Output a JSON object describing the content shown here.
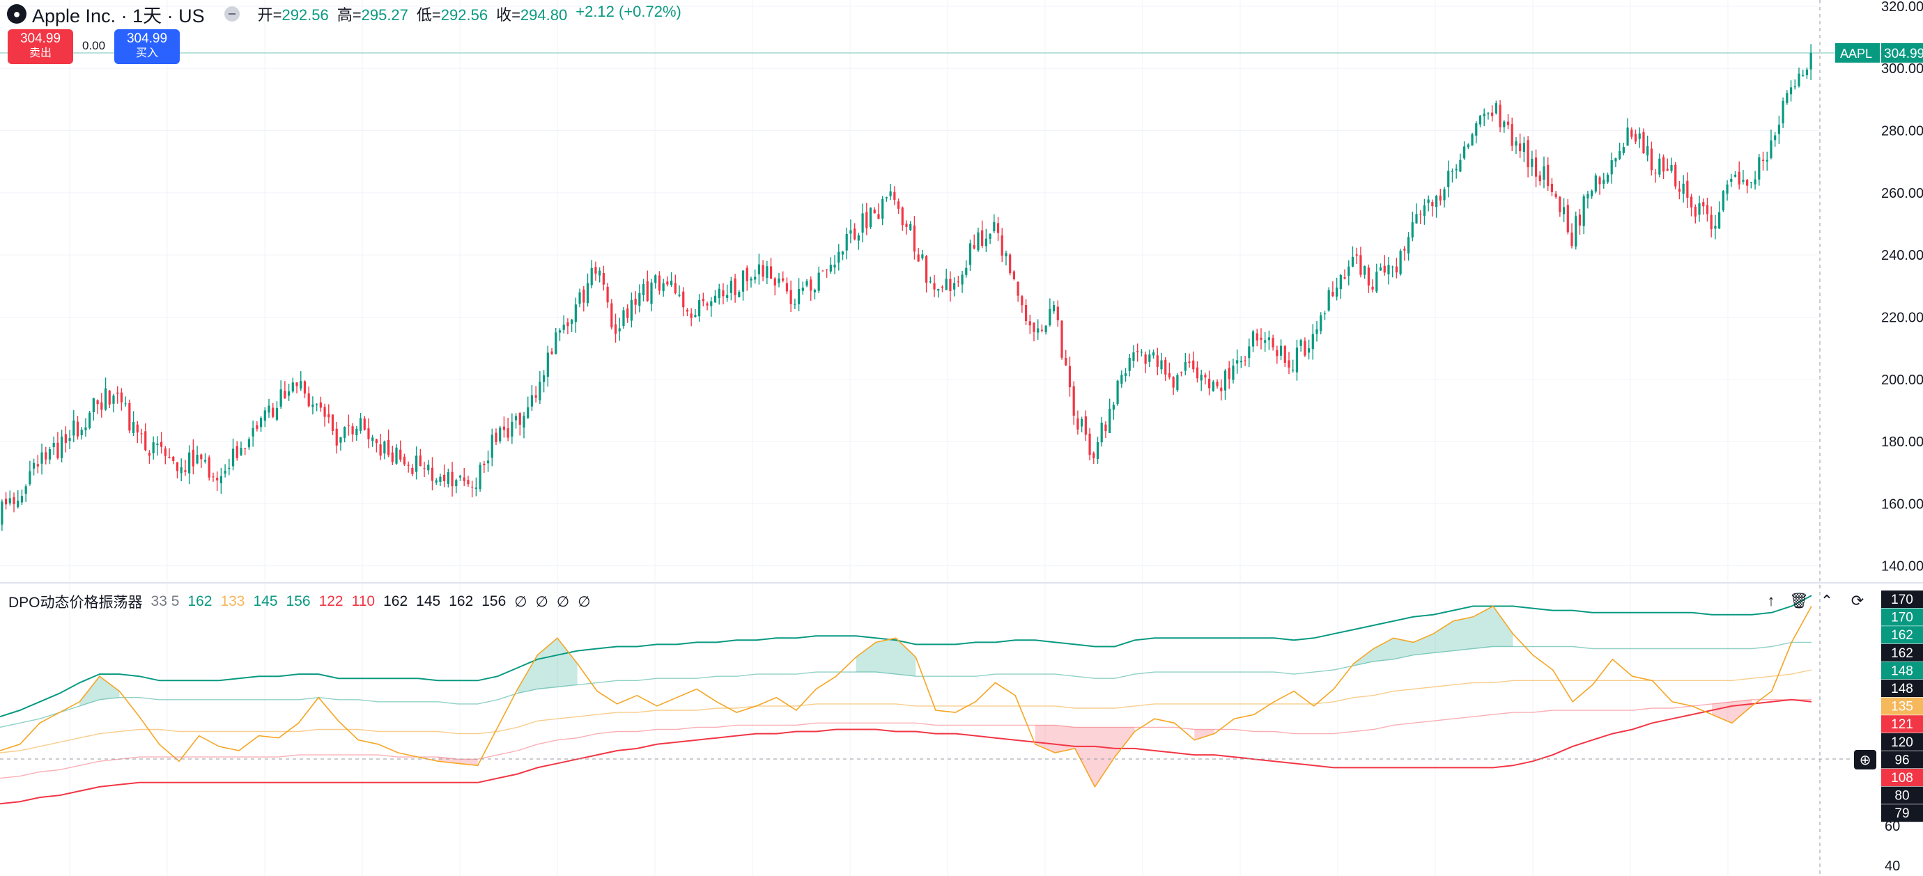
{
  "header": {
    "symbol": "Apple Inc. · 1天 · US",
    "ohlc": [
      {
        "k": "开=",
        "v": "292.56"
      },
      {
        "k": "高=",
        "v": "295.27"
      },
      {
        "k": "低=",
        "v": "292.56"
      },
      {
        "k": "收=",
        "v": "294.80"
      },
      {
        "k": "",
        "v": "+2.12 (+0.72%)"
      }
    ]
  },
  "trade": {
    "sell_price": "304.99",
    "sell_label": "卖出",
    "spread": "0.00",
    "buy_price": "304.99",
    "buy_label": "买入"
  },
  "indicator": {
    "name": "DPO动态价格振荡器",
    "params": "33 5",
    "values": [
      {
        "v": "162",
        "color": "#089981"
      },
      {
        "v": "133",
        "color": "#f5b85c"
      },
      {
        "v": "145",
        "color": "#089981"
      },
      {
        "v": "156",
        "color": "#089981"
      },
      {
        "v": "122",
        "color": "#f23645"
      },
      {
        "v": "110",
        "color": "#f23645"
      },
      {
        "v": "162",
        "color": "#131722"
      },
      {
        "v": "145",
        "color": "#131722"
      },
      {
        "v": "162",
        "color": "#131722"
      },
      {
        "v": "156",
        "color": "#131722"
      },
      {
        "v": "∅",
        "color": "#131722"
      },
      {
        "v": "∅",
        "color": "#131722"
      },
      {
        "v": "∅",
        "color": "#131722"
      },
      {
        "v": "∅",
        "color": "#131722"
      }
    ]
  },
  "colors": {
    "up": "#089981",
    "down": "#f23645",
    "dpo_line": "#f5a623",
    "upper": "#089981",
    "lower": "#f23645"
  },
  "chart_data": [
    {
      "type": "candlestick",
      "symbol_tag": "AAPL",
      "last_price": 304.99,
      "price_label": "304.99",
      "ylim": [
        135,
        322
      ],
      "yticks": [
        "320.00",
        "300.00",
        "280.00",
        "260.00",
        "240.00",
        "220.00",
        "200.00",
        "180.00",
        "160.00",
        "140.00"
      ],
      "close_series": [
        156,
        164,
        172,
        178,
        185,
        192,
        196,
        180,
        176,
        172,
        174,
        168,
        178,
        186,
        192,
        199,
        190,
        182,
        186,
        178,
        176,
        172,
        170,
        166,
        168,
        182,
        186,
        196,
        212,
        222,
        236,
        214,
        226,
        230,
        228,
        222,
        226,
        230,
        236,
        232,
        226,
        232,
        240,
        248,
        254,
        259,
        244,
        226,
        232,
        244,
        249,
        232,
        212,
        224,
        190,
        176,
        194,
        212,
        206,
        200,
        204,
        196,
        202,
        212,
        210,
        206,
        214,
        228,
        238,
        232,
        234,
        250,
        256,
        268,
        278,
        288,
        278,
        270,
        262,
        246,
        262,
        268,
        280,
        270,
        266,
        256,
        250,
        262,
        264,
        276,
        294,
        302
      ]
    },
    {
      "type": "line",
      "name": "DPO动态价格振荡器",
      "ylim": [
        38,
        175
      ],
      "yticks": [
        "170",
        "60",
        "40"
      ],
      "right_labels": [
        {
          "v": "170",
          "bg": "#131722"
        },
        {
          "v": "170",
          "bg": "#089981"
        },
        {
          "v": "162",
          "bg": "#089981"
        },
        {
          "v": "162",
          "bg": "#131722"
        },
        {
          "v": "148",
          "bg": "#089981"
        },
        {
          "v": "148",
          "bg": "#131722"
        },
        {
          "v": "135",
          "bg": "#f5b85c"
        },
        {
          "v": "121",
          "bg": "#f23645"
        },
        {
          "v": "120",
          "bg": "#131722"
        },
        {
          "v": "96",
          "bg": "#131722"
        },
        {
          "v": "108",
          "bg": "#f23645"
        },
        {
          "v": "80",
          "bg": "#131722"
        },
        {
          "v": "79",
          "bg": "#131722"
        }
      ],
      "upper_band": [
        113,
        116,
        120,
        124,
        129,
        133,
        133,
        132,
        130,
        130,
        130,
        130,
        131,
        132,
        132,
        133,
        133,
        131,
        131,
        131,
        131,
        131,
        130,
        130,
        130,
        132,
        136,
        140,
        142,
        144,
        145,
        146,
        146,
        147,
        147,
        148,
        148,
        149,
        149,
        150,
        150,
        151,
        151,
        151,
        150,
        149,
        147,
        147,
        147,
        148,
        148,
        149,
        149,
        148,
        147,
        146,
        146,
        149,
        150,
        150,
        150,
        150,
        150,
        150,
        150,
        149,
        150,
        152,
        154,
        156,
        158,
        160,
        161,
        163,
        165,
        165,
        165,
        164,
        163,
        163,
        162,
        162,
        162,
        162,
        162,
        162,
        161,
        161,
        161,
        162,
        165,
        170
      ],
      "upper_mid": [
        108,
        110,
        112,
        115,
        118,
        121,
        122,
        122,
        121,
        121,
        121,
        121,
        121,
        121,
        121,
        121,
        122,
        121,
        121,
        120,
        120,
        120,
        120,
        119,
        119,
        121,
        124,
        126,
        127,
        128,
        129,
        130,
        130,
        131,
        131,
        131,
        132,
        132,
        133,
        133,
        133,
        134,
        134,
        134,
        134,
        133,
        132,
        132,
        132,
        132,
        133,
        133,
        133,
        133,
        132,
        131,
        131,
        133,
        134,
        134,
        134,
        134,
        134,
        134,
        134,
        133,
        134,
        135,
        137,
        139,
        140,
        142,
        143,
        144,
        145,
        146,
        146,
        146,
        146,
        146,
        145,
        145,
        145,
        145,
        145,
        145,
        145,
        145,
        145,
        146,
        148,
        148
      ],
      "middle": [
        96,
        97,
        99,
        101,
        103,
        105,
        106,
        107,
        107,
        106,
        106,
        106,
        106,
        106,
        106,
        106,
        107,
        107,
        107,
        106,
        106,
        106,
        106,
        105,
        105,
        106,
        108,
        111,
        112,
        113,
        114,
        115,
        115,
        116,
        116,
        116,
        117,
        117,
        118,
        118,
        118,
        119,
        119,
        119,
        119,
        119,
        118,
        118,
        118,
        118,
        118,
        118,
        118,
        118,
        117,
        117,
        117,
        118,
        119,
        119,
        119,
        119,
        119,
        119,
        119,
        119,
        119,
        120,
        122,
        123,
        125,
        126,
        127,
        128,
        129,
        129,
        130,
        130,
        130,
        130,
        130,
        130,
        130,
        130,
        130,
        130,
        130,
        130,
        131,
        132,
        133,
        135
      ],
      "lower_mid": [
        84,
        85,
        87,
        88,
        90,
        92,
        93,
        94,
        94,
        94,
        94,
        94,
        94,
        94,
        94,
        95,
        95,
        95,
        95,
        95,
        94,
        94,
        94,
        93,
        93,
        95,
        97,
        100,
        102,
        103,
        105,
        106,
        106,
        107,
        107,
        108,
        108,
        109,
        109,
        109,
        109,
        110,
        110,
        110,
        110,
        110,
        110,
        109,
        109,
        109,
        109,
        109,
        109,
        109,
        108,
        108,
        108,
        108,
        108,
        108,
        107,
        107,
        107,
        106,
        106,
        105,
        105,
        105,
        106,
        107,
        109,
        110,
        111,
        112,
        113,
        114,
        115,
        115,
        116,
        116,
        116,
        116,
        116,
        117,
        117,
        118,
        119,
        120,
        121,
        121,
        121,
        121
      ],
      "lower_band": [
        72,
        73,
        75,
        76,
        78,
        80,
        81,
        82,
        82,
        82,
        82,
        82,
        82,
        82,
        82,
        82,
        82,
        82,
        82,
        82,
        82,
        82,
        82,
        82,
        82,
        84,
        86,
        89,
        91,
        93,
        95,
        97,
        98,
        100,
        101,
        102,
        103,
        104,
        105,
        105,
        106,
        106,
        107,
        107,
        107,
        106,
        106,
        105,
        105,
        104,
        103,
        102,
        101,
        100,
        99,
        99,
        98,
        98,
        97,
        96,
        95,
        95,
        94,
        93,
        92,
        91,
        90,
        89,
        89,
        89,
        89,
        89,
        89,
        89,
        89,
        89,
        90,
        92,
        95,
        99,
        102,
        105,
        107,
        110,
        112,
        114,
        116,
        118,
        119,
        120,
        121,
        120
      ],
      "dpo": [
        97,
        100,
        110,
        115,
        120,
        132,
        125,
        113,
        100,
        92,
        104,
        99,
        97,
        104,
        103,
        110,
        122,
        111,
        102,
        100,
        96,
        94,
        92,
        91,
        90,
        108,
        126,
        142,
        150,
        138,
        125,
        119,
        123,
        118,
        122,
        126,
        120,
        115,
        118,
        122,
        116,
        126,
        132,
        141,
        148,
        150,
        141,
        116,
        115,
        120,
        129,
        123,
        100,
        96,
        98,
        80,
        94,
        106,
        112,
        110,
        102,
        105,
        112,
        114,
        120,
        125,
        118,
        126,
        138,
        145,
        150,
        148,
        152,
        158,
        160,
        165,
        152,
        142,
        135,
        120,
        128,
        140,
        132,
        130,
        120,
        118,
        114,
        110,
        118,
        125,
        148,
        165
      ]
    }
  ]
}
